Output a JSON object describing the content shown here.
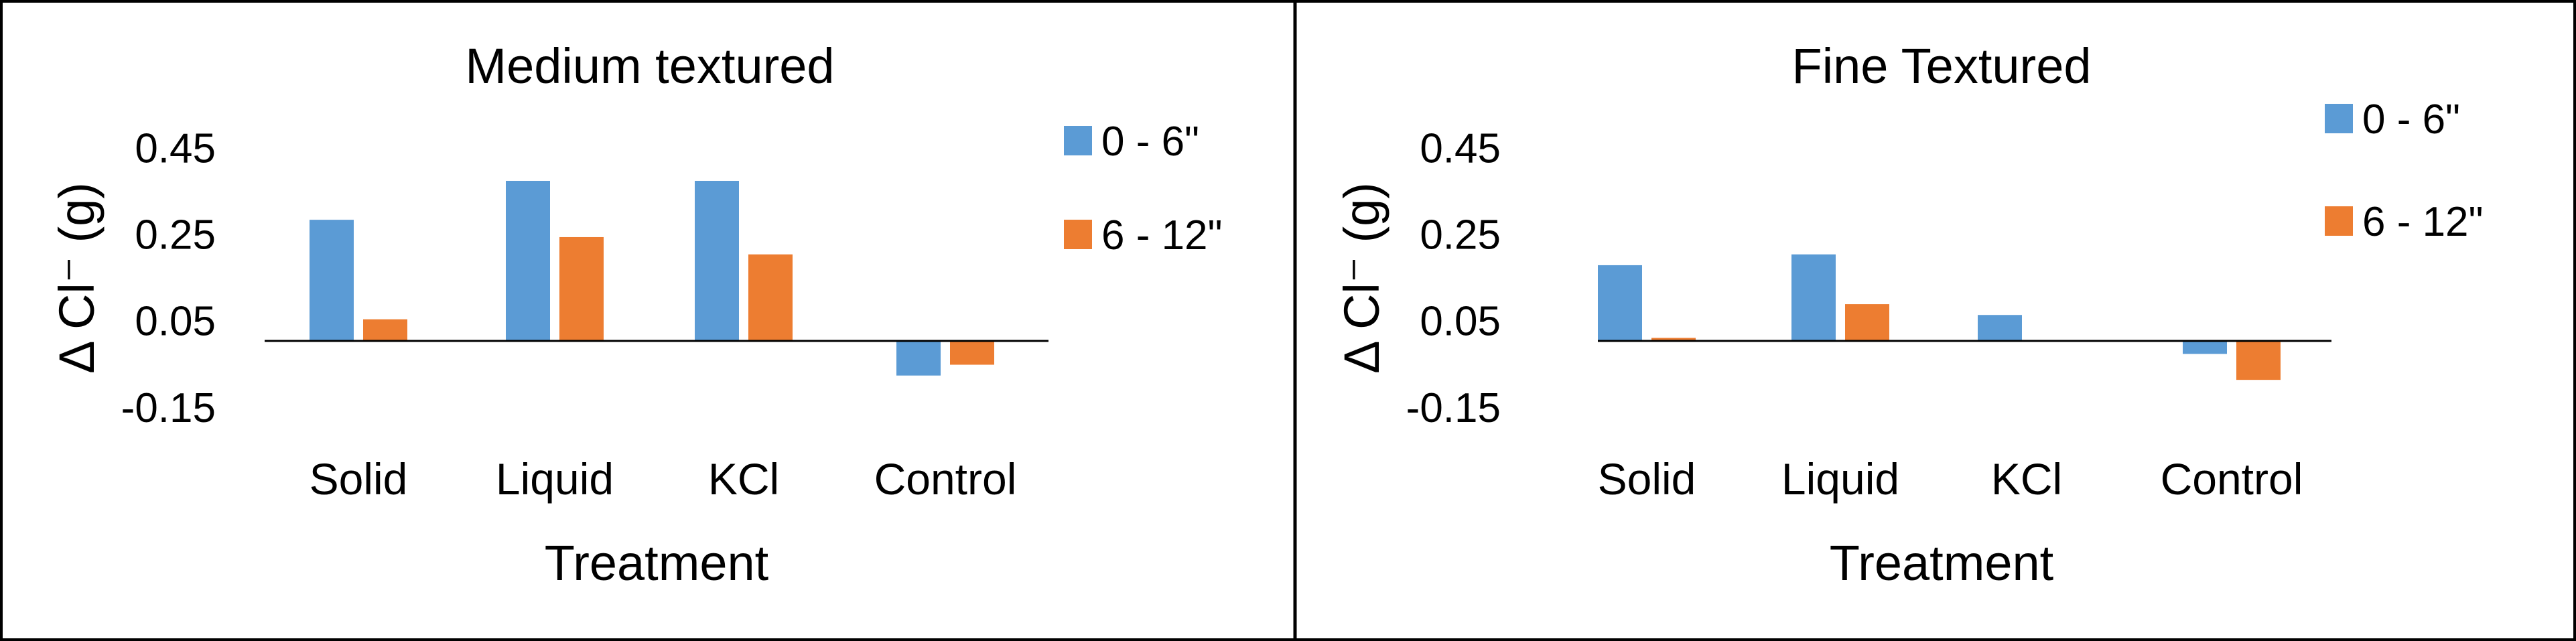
{
  "chart_data": [
    {
      "type": "bar",
      "title": "Medium textured",
      "xlabel": "Treatment",
      "ylabel": "Δ Cl⁻  (g)",
      "categories": [
        "Solid",
        "Liquid",
        "KCl",
        "Control"
      ],
      "yticks": [
        "0.45",
        "0.25",
        "0.05",
        "-0.15"
      ],
      "ylim": [
        -0.15,
        0.45
      ],
      "grid": false,
      "legend_position": "right",
      "series": [
        {
          "name": "0 - 6\"",
          "color": "#5B9BD5",
          "values": [
            0.28,
            0.37,
            0.37,
            -0.08
          ]
        },
        {
          "name": "6 - 12\"",
          "color": "#ED7D31",
          "values": [
            0.05,
            0.24,
            0.2,
            -0.055
          ]
        }
      ]
    },
    {
      "type": "bar",
      "title": "Fine Textured",
      "xlabel": "Treatment",
      "ylabel": "Δ Cl⁻  (g)",
      "categories": [
        "Solid",
        "Liquid",
        "KCl",
        "Control"
      ],
      "yticks": [
        "0.45",
        "0.25",
        "0.05",
        "-0.15"
      ],
      "ylim": [
        -0.15,
        0.45
      ],
      "grid": false,
      "legend_position": "right",
      "series": [
        {
          "name": "0 - 6\"",
          "color": "#5B9BD5",
          "values": [
            0.175,
            0.2,
            0.06,
            -0.03
          ]
        },
        {
          "name": "6 - 12\"",
          "color": "#ED7D31",
          "values": [
            0.007,
            0.085,
            0.002,
            -0.09
          ]
        }
      ]
    }
  ]
}
